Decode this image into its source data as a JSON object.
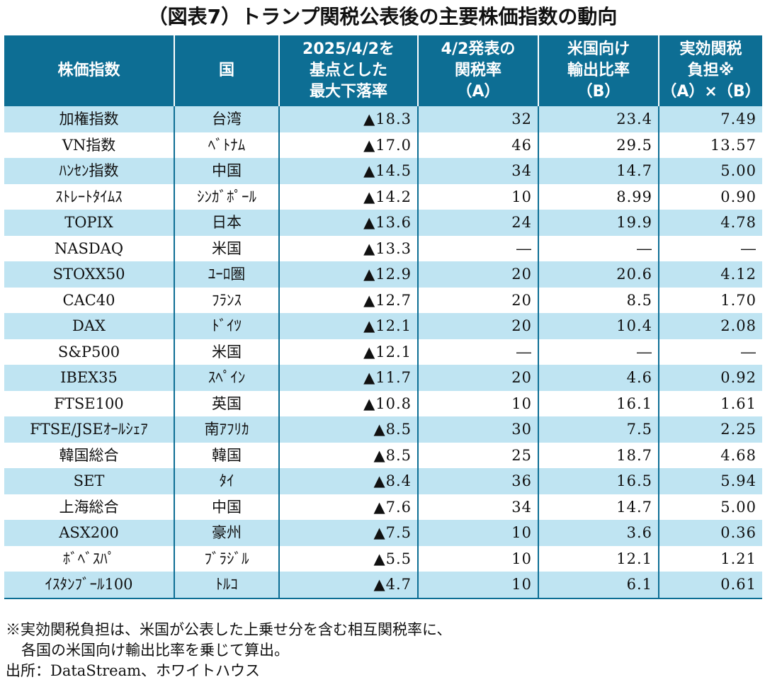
{
  "title": "（図表7）トランプ関税公表後の主要株価指数の動向",
  "headers": [
    "株価指数",
    "国",
    "2025/4/2を\n基点とした\n最大下落率",
    "4/2発表の\n関税率\n（A）",
    "米国向け\n輸出比率\n（B）",
    "実効関税\n負担※\n（A）×（B）"
  ],
  "rows": [
    {
      "index": "加権指数",
      "country": "台湾",
      "decline": "▲18.3",
      "tariff": "32",
      "export": "23.4",
      "burden": "7.49"
    },
    {
      "index": "VN指数",
      "country": "ﾍﾞﾄﾅﾑ",
      "decline": "▲17.0",
      "tariff": "46",
      "export": "29.5",
      "burden": "13.57"
    },
    {
      "index": "ﾊﾝｾﾝ指数",
      "country": "中国",
      "decline": "▲14.5",
      "tariff": "34",
      "export": "14.7",
      "burden": "5.00"
    },
    {
      "index": "ｽﾄﾚｰﾄﾀｲﾑｽ",
      "country": "ｼﾝｶﾞﾎﾟｰﾙ",
      "decline": "▲14.2",
      "tariff": "10",
      "export": "8.99",
      "burden": "0.90"
    },
    {
      "index": "TOPIX",
      "country": "日本",
      "decline": "▲13.6",
      "tariff": "24",
      "export": "19.9",
      "burden": "4.78"
    },
    {
      "index": "NASDAQ",
      "country": "米国",
      "decline": "▲13.3",
      "tariff": "―",
      "export": "―",
      "burden": "―"
    },
    {
      "index": "STOXX50",
      "country": "ﾕｰﾛ圏",
      "decline": "▲12.9",
      "tariff": "20",
      "export": "20.6",
      "burden": "4.12"
    },
    {
      "index": "CAC40",
      "country": "ﾌﾗﾝｽ",
      "decline": "▲12.7",
      "tariff": "20",
      "export": "8.5",
      "burden": "1.70"
    },
    {
      "index": "DAX",
      "country": "ﾄﾞｲﾂ",
      "decline": "▲12.1",
      "tariff": "20",
      "export": "10.4",
      "burden": "2.08"
    },
    {
      "index": "S&P500",
      "country": "米国",
      "decline": "▲12.1",
      "tariff": "―",
      "export": "―",
      "burden": "―"
    },
    {
      "index": "IBEX35",
      "country": "ｽﾍﾟｲﾝ",
      "decline": "▲11.7",
      "tariff": "20",
      "export": "4.6",
      "burden": "0.92"
    },
    {
      "index": "FTSE100",
      "country": "英国",
      "decline": "▲10.8",
      "tariff": "10",
      "export": "16.1",
      "burden": "1.61"
    },
    {
      "index": "FTSE/JSEｵｰﾙｼｪｱ",
      "country": "南ｱﾌﾘｶ",
      "decline": "▲8.5",
      "tariff": "30",
      "export": "7.5",
      "burden": "2.25"
    },
    {
      "index": "韓国総合",
      "country": "韓国",
      "decline": "▲8.5",
      "tariff": "25",
      "export": "18.7",
      "burden": "4.68"
    },
    {
      "index": "SET",
      "country": "ﾀｲ",
      "decline": "▲8.4",
      "tariff": "36",
      "export": "16.5",
      "burden": "5.94"
    },
    {
      "index": "上海総合",
      "country": "中国",
      "decline": "▲7.6",
      "tariff": "34",
      "export": "14.7",
      "burden": "5.00"
    },
    {
      "index": "ASX200",
      "country": "豪州",
      "decline": "▲7.5",
      "tariff": "10",
      "export": "3.6",
      "burden": "0.36"
    },
    {
      "index": "ﾎﾞﾍﾞｽﾊﾟ",
      "country": "ﾌﾞﾗｼﾞﾙ",
      "decline": "▲5.5",
      "tariff": "10",
      "export": "12.1",
      "burden": "1.21"
    },
    {
      "index": "ｲｽﾀﾝﾌﾞｰﾙ100",
      "country": "ﾄﾙｺ",
      "decline": "▲4.7",
      "tariff": "10",
      "export": "6.1",
      "burden": "0.61"
    }
  ],
  "notes": {
    "line1": "※実効関税負担は、米国が公表した上乗せ分を含む相互関税率に、",
    "line2": "各国の米国向け輸出比率を乗じて算出。",
    "source": "出所：DataStream、ホワイトハウス"
  },
  "colors": {
    "header_bg": "#0d6e94",
    "stripe": "#bfe4f2"
  }
}
